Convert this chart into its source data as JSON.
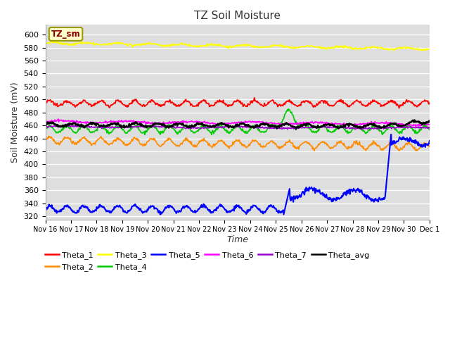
{
  "title": "TZ Soil Moisture",
  "xlabel": "Time",
  "ylabel": "Soil Moisture (mV)",
  "ylim": [
    315,
    615
  ],
  "yticks": [
    320,
    340,
    360,
    380,
    400,
    420,
    440,
    460,
    480,
    500,
    520,
    540,
    560,
    580,
    600
  ],
  "bg_color": "#dedede",
  "fig_color": "#ffffff",
  "legend_box_label": "TZ_sm",
  "n_days": 15,
  "samples_per_day": 48,
  "series_colors": {
    "Theta_1": "#ff0000",
    "Theta_2": "#ff8c00",
    "Theta_3": "#ffff00",
    "Theta_4": "#00cc00",
    "Theta_5": "#0000ff",
    "Theta_6": "#ff00ff",
    "Theta_7": "#9900cc",
    "Theta_avg": "#000000"
  },
  "legend_row1": [
    "Theta_1",
    "Theta_2",
    "Theta_3",
    "Theta_4",
    "Theta_5",
    "Theta_6"
  ],
  "legend_row2": [
    "Theta_7",
    "Theta_avg"
  ]
}
